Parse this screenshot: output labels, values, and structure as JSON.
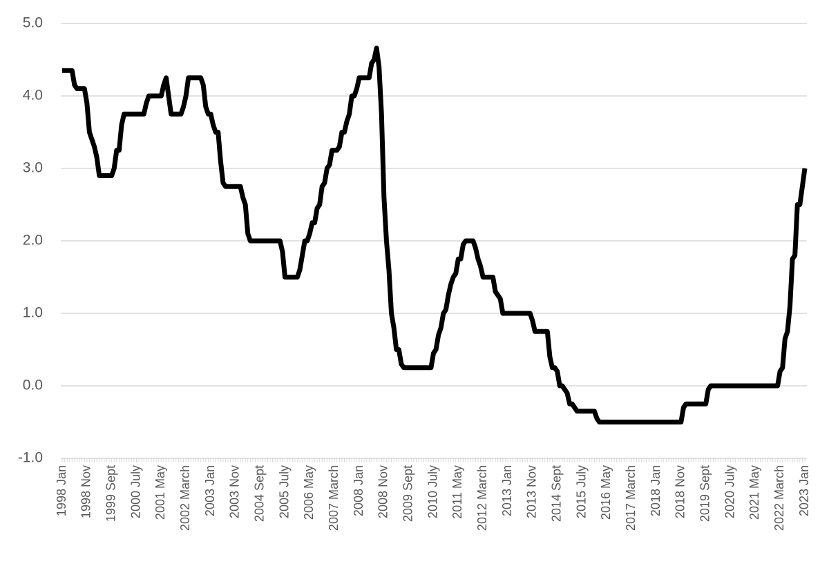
{
  "chart_data": {
    "type": "line",
    "categories": [
      "1998 Jan",
      null,
      null,
      null,
      null,
      null,
      null,
      null,
      null,
      null,
      "1998 Nov",
      null,
      null,
      null,
      null,
      null,
      null,
      null,
      null,
      null,
      "1999 Sept",
      null,
      null,
      null,
      null,
      null,
      null,
      null,
      null,
      null,
      "2000 July",
      null,
      null,
      null,
      null,
      null,
      null,
      null,
      null,
      null,
      "2001 May",
      null,
      null,
      null,
      null,
      null,
      null,
      null,
      null,
      null,
      "2002 March",
      null,
      null,
      null,
      null,
      null,
      null,
      null,
      null,
      null,
      "2003 Jan",
      null,
      null,
      null,
      null,
      null,
      null,
      null,
      null,
      null,
      "2003 Nov",
      null,
      null,
      null,
      null,
      null,
      null,
      null,
      null,
      null,
      "2004 Sept",
      null,
      null,
      null,
      null,
      null,
      null,
      null,
      null,
      null,
      "2005 July",
      null,
      null,
      null,
      null,
      null,
      null,
      null,
      null,
      null,
      "2006 May",
      null,
      null,
      null,
      null,
      null,
      null,
      null,
      null,
      null,
      "2007 March",
      null,
      null,
      null,
      null,
      null,
      null,
      null,
      null,
      null,
      "2008 Jan",
      null,
      null,
      null,
      null,
      null,
      null,
      null,
      null,
      null,
      "2008 Nov",
      null,
      null,
      null,
      null,
      null,
      null,
      null,
      null,
      null,
      "2009 Sept",
      null,
      null,
      null,
      null,
      null,
      null,
      null,
      null,
      null,
      "2010 July",
      null,
      null,
      null,
      null,
      null,
      null,
      null,
      null,
      null,
      "2011 May",
      null,
      null,
      null,
      null,
      null,
      null,
      null,
      null,
      null,
      "2012 March",
      null,
      null,
      null,
      null,
      null,
      null,
      null,
      null,
      null,
      "2013 Jan",
      null,
      null,
      null,
      null,
      null,
      null,
      null,
      null,
      null,
      "2013 Nov",
      null,
      null,
      null,
      null,
      null,
      null,
      null,
      null,
      null,
      "2014 Sept",
      null,
      null,
      null,
      null,
      null,
      null,
      null,
      null,
      null,
      "2015 July",
      null,
      null,
      null,
      null,
      null,
      null,
      null,
      null,
      null,
      "2016 May",
      null,
      null,
      null,
      null,
      null,
      null,
      null,
      null,
      null,
      "2017 March",
      null,
      null,
      null,
      null,
      null,
      null,
      null,
      null,
      null,
      "2018 Jan",
      null,
      null,
      null,
      null,
      null,
      null,
      null,
      null,
      null,
      "2018 Nov",
      null,
      null,
      null,
      null,
      null,
      null,
      null,
      null,
      null,
      "2019 Sept",
      null,
      null,
      null,
      null,
      null,
      null,
      null,
      null,
      null,
      "2020 July",
      null,
      null,
      null,
      null,
      null,
      null,
      null,
      null,
      null,
      "2021 May",
      null,
      null,
      null,
      null,
      null,
      null,
      null,
      null,
      null,
      "2022 March",
      null,
      null,
      null,
      null,
      null,
      null,
      null,
      null,
      null,
      "2023 Jan"
    ],
    "values": [
      4.35,
      4.35,
      4.35,
      4.35,
      4.35,
      4.15,
      4.1,
      4.1,
      4.1,
      4.1,
      3.9,
      3.5,
      3.4,
      3.3,
      3.15,
      2.9,
      2.9,
      2.9,
      2.9,
      2.9,
      2.9,
      3.0,
      3.25,
      3.25,
      3.6,
      3.75,
      3.75,
      3.75,
      3.75,
      3.75,
      3.75,
      3.75,
      3.75,
      3.75,
      3.9,
      4.0,
      4.0,
      4.0,
      4.0,
      4.0,
      4.0,
      4.15,
      4.25,
      4.0,
      3.75,
      3.75,
      3.75,
      3.75,
      3.75,
      3.85,
      4.0,
      4.25,
      4.25,
      4.25,
      4.25,
      4.25,
      4.25,
      4.15,
      3.85,
      3.75,
      3.75,
      3.6,
      3.5,
      3.5,
      3.1,
      2.8,
      2.75,
      2.75,
      2.75,
      2.75,
      2.75,
      2.75,
      2.75,
      2.6,
      2.5,
      2.1,
      2.0,
      2.0,
      2.0,
      2.0,
      2.0,
      2.0,
      2.0,
      2.0,
      2.0,
      2.0,
      2.0,
      2.0,
      2.0,
      1.85,
      1.5,
      1.5,
      1.5,
      1.5,
      1.5,
      1.5,
      1.6,
      1.8,
      2.0,
      2.0,
      2.1,
      2.25,
      2.25,
      2.45,
      2.5,
      2.75,
      2.8,
      3.0,
      3.05,
      3.25,
      3.25,
      3.25,
      3.3,
      3.5,
      3.5,
      3.65,
      3.75,
      4.0,
      4.0,
      4.1,
      4.25,
      4.25,
      4.25,
      4.25,
      4.25,
      4.45,
      4.5,
      4.66,
      4.4,
      3.75,
      2.6,
      2.0,
      1.6,
      1.0,
      0.8,
      0.5,
      0.5,
      0.3,
      0.25,
      0.25,
      0.25,
      0.25,
      0.25,
      0.25,
      0.25,
      0.25,
      0.25,
      0.25,
      0.25,
      0.25,
      0.45,
      0.5,
      0.7,
      0.8,
      1.0,
      1.05,
      1.25,
      1.4,
      1.5,
      1.55,
      1.75,
      1.75,
      1.95,
      2.0,
      2.0,
      2.0,
      2.0,
      1.9,
      1.75,
      1.65,
      1.5,
      1.5,
      1.5,
      1.5,
      1.5,
      1.3,
      1.25,
      1.2,
      1.0,
      1.0,
      1.0,
      1.0,
      1.0,
      1.0,
      1.0,
      1.0,
      1.0,
      1.0,
      1.0,
      1.0,
      0.9,
      0.75,
      0.75,
      0.75,
      0.75,
      0.75,
      0.75,
      0.4,
      0.25,
      0.25,
      0.2,
      0.0,
      0.0,
      -0.05,
      -0.1,
      -0.25,
      -0.25,
      -0.3,
      -0.35,
      -0.35,
      -0.35,
      -0.35,
      -0.35,
      -0.35,
      -0.35,
      -0.35,
      -0.45,
      -0.5,
      -0.5,
      -0.5,
      -0.5,
      -0.5,
      -0.5,
      -0.5,
      -0.5,
      -0.5,
      -0.5,
      -0.5,
      -0.5,
      -0.5,
      -0.5,
      -0.5,
      -0.5,
      -0.5,
      -0.5,
      -0.5,
      -0.5,
      -0.5,
      -0.5,
      -0.5,
      -0.5,
      -0.5,
      -0.5,
      -0.5,
      -0.5,
      -0.5,
      -0.5,
      -0.5,
      -0.5,
      -0.5,
      -0.5,
      -0.3,
      -0.25,
      -0.25,
      -0.25,
      -0.25,
      -0.25,
      -0.25,
      -0.25,
      -0.25,
      -0.25,
      -0.05,
      0.0,
      0.0,
      0.0,
      0.0,
      0.0,
      0.0,
      0.0,
      0.0,
      0.0,
      0.0,
      0.0,
      0.0,
      0.0,
      0.0,
      0.0,
      0.0,
      0.0,
      0.0,
      0.0,
      0.0,
      0.0,
      0.0,
      0.0,
      0.0,
      0.0,
      0.0,
      0.0,
      0.0,
      0.2,
      0.25,
      0.65,
      0.75,
      1.1,
      1.75,
      1.8,
      2.5,
      2.5,
      2.75,
      3.0
    ],
    "color": "#000000",
    "ylim": [
      -1,
      5
    ],
    "yticks": [
      {
        "value": -1,
        "label": "-1.0"
      },
      {
        "value": 0,
        "label": "0.0"
      },
      {
        "value": 1,
        "label": "1.0"
      },
      {
        "value": 2,
        "label": "2.0"
      },
      {
        "value": 3,
        "label": "3.0"
      },
      {
        "value": 4,
        "label": "4.0"
      },
      {
        "value": 5,
        "label": "5.0"
      }
    ],
    "grid": true
  }
}
